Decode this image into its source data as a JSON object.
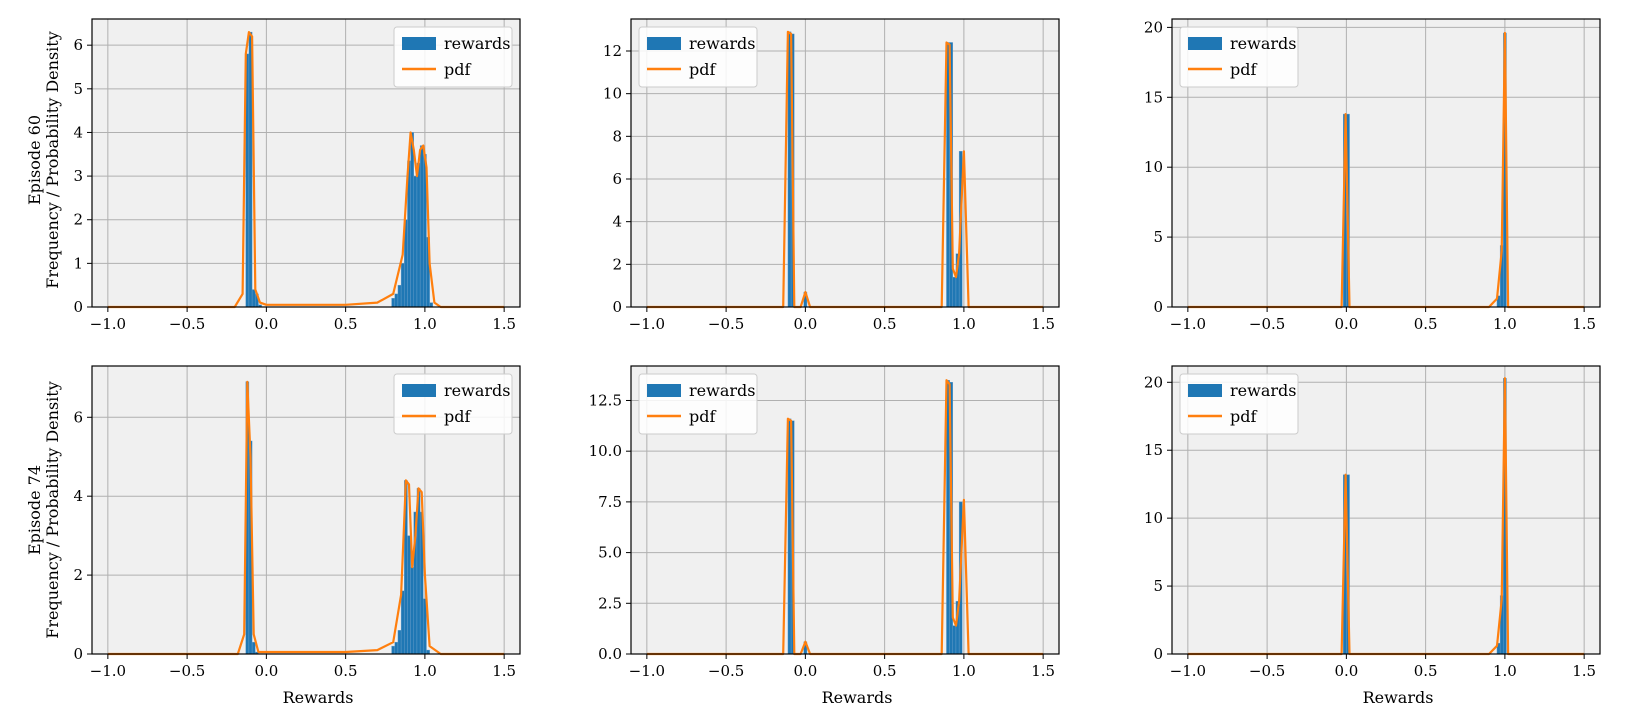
{
  "figure": {
    "row_labels": [
      [
        "Episode 60",
        "Frequency / Probability Density"
      ],
      [
        "Episode 74",
        "Frequency / Probability Density"
      ]
    ],
    "xlabel": "Rewards",
    "legend": {
      "rewards": "rewards",
      "pdf": "pdf"
    },
    "colors": {
      "bar": "#1f77b4",
      "pdf": "#ff7f0e",
      "panel_bg": "#f0f0f0",
      "grid": "#b0b0b0"
    }
  },
  "chart_data": [
    {
      "type": "bar",
      "row": 0,
      "col": 0,
      "xlim": [
        -1.1,
        1.6
      ],
      "ylim": [
        0,
        6.6
      ],
      "xticks": [
        -1.0,
        -0.5,
        0.0,
        0.5,
        1.0,
        1.5
      ],
      "xtick_labels": [
        "−1.0",
        "−0.5",
        "0.0",
        "0.5",
        "1.0",
        "1.5"
      ],
      "yticks": [
        0,
        1,
        2,
        3,
        4,
        5,
        6
      ],
      "ytick_labels": [
        "0",
        "1",
        "2",
        "3",
        "4",
        "5",
        "6"
      ],
      "legend_position": "top-right",
      "bin_width": 0.02,
      "bars": [
        [
          -0.12,
          5.8
        ],
        [
          -0.1,
          6.3
        ],
        [
          -0.08,
          0.4
        ],
        [
          -0.06,
          0.3
        ],
        [
          -0.04,
          0.05
        ],
        [
          0.8,
          0.2
        ],
        [
          0.82,
          0.3
        ],
        [
          0.84,
          0.5
        ],
        [
          0.86,
          1.0
        ],
        [
          0.88,
          2.0
        ],
        [
          0.9,
          3.35
        ],
        [
          0.92,
          4.0
        ],
        [
          0.94,
          3.0
        ],
        [
          0.96,
          3.3
        ],
        [
          0.98,
          3.7
        ],
        [
          1.0,
          3.5
        ],
        [
          1.02,
          1.6
        ],
        [
          1.04,
          0.1
        ]
      ],
      "pdf": [
        [
          -1.0,
          0
        ],
        [
          -0.2,
          0
        ],
        [
          -0.15,
          0.3
        ],
        [
          -0.13,
          5.8
        ],
        [
          -0.11,
          6.3
        ],
        [
          -0.09,
          6.2
        ],
        [
          -0.07,
          0.4
        ],
        [
          -0.04,
          0.1
        ],
        [
          0.0,
          0.05
        ],
        [
          0.5,
          0.05
        ],
        [
          0.7,
          0.1
        ],
        [
          0.8,
          0.3
        ],
        [
          0.86,
          1.2
        ],
        [
          0.89,
          3.0
        ],
        [
          0.91,
          4.0
        ],
        [
          0.93,
          3.6
        ],
        [
          0.95,
          3.0
        ],
        [
          0.97,
          3.6
        ],
        [
          0.99,
          3.7
        ],
        [
          1.01,
          3.2
        ],
        [
          1.03,
          1.0
        ],
        [
          1.06,
          0.1
        ],
        [
          1.1,
          0
        ],
        [
          1.5,
          0
        ]
      ]
    },
    {
      "type": "bar",
      "row": 0,
      "col": 1,
      "xlim": [
        -1.1,
        1.6
      ],
      "ylim": [
        0,
        13.5
      ],
      "xticks": [
        -1.0,
        -0.5,
        0.0,
        0.5,
        1.0,
        1.5
      ],
      "xtick_labels": [
        "−1.0",
        "−0.5",
        "0.0",
        "0.5",
        "1.0",
        "1.5"
      ],
      "yticks": [
        0,
        2,
        4,
        6,
        8,
        10,
        12
      ],
      "ytick_labels": [
        "0",
        "2",
        "4",
        "6",
        "8",
        "10",
        "12"
      ],
      "legend_position": "top-left",
      "bin_width": 0.02,
      "bars": [
        [
          -0.1,
          12.9
        ],
        [
          -0.08,
          12.8
        ],
        [
          0.0,
          0.7
        ],
        [
          0.9,
          12.4
        ],
        [
          0.92,
          12.4
        ],
        [
          0.94,
          1.4
        ],
        [
          0.96,
          2.5
        ],
        [
          0.98,
          7.3
        ]
      ],
      "pdf": [
        [
          -1.0,
          0
        ],
        [
          -0.14,
          0
        ],
        [
          -0.11,
          12.9
        ],
        [
          -0.09,
          12.8
        ],
        [
          -0.07,
          0
        ],
        [
          -0.03,
          0
        ],
        [
          0.0,
          0.7
        ],
        [
          0.03,
          0
        ],
        [
          0.86,
          0
        ],
        [
          0.89,
          12.4
        ],
        [
          0.91,
          12.3
        ],
        [
          0.93,
          1.8
        ],
        [
          0.95,
          1.4
        ],
        [
          0.97,
          2.5
        ],
        [
          1.0,
          7.3
        ],
        [
          1.03,
          0
        ],
        [
          1.5,
          0
        ]
      ]
    },
    {
      "type": "bar",
      "row": 0,
      "col": 2,
      "xlim": [
        -1.1,
        1.6
      ],
      "ylim": [
        0,
        20.6
      ],
      "xticks": [
        -1.0,
        -0.5,
        0.0,
        0.5,
        1.0,
        1.5
      ],
      "xtick_labels": [
        "−1.0",
        "−0.5",
        "0.0",
        "0.5",
        "1.0",
        "1.5"
      ],
      "yticks": [
        0,
        5,
        10,
        15,
        20
      ],
      "ytick_labels": [
        "0",
        "5",
        "10",
        "15",
        "20"
      ],
      "legend_position": "top-left",
      "bin_width": 0.02,
      "bars": [
        [
          -0.01,
          13.8
        ],
        [
          0.01,
          13.8
        ],
        [
          0.96,
          0.8
        ],
        [
          0.98,
          4.4
        ],
        [
          1.0,
          19.6
        ]
      ],
      "pdf": [
        [
          -1.0,
          0
        ],
        [
          -0.03,
          0
        ],
        [
          -0.005,
          13.8
        ],
        [
          0.02,
          0
        ],
        [
          0.9,
          0
        ],
        [
          0.95,
          0.6
        ],
        [
          0.98,
          4.0
        ],
        [
          1.0,
          19.6
        ],
        [
          1.02,
          0
        ],
        [
          1.5,
          0
        ]
      ]
    },
    {
      "type": "bar",
      "row": 1,
      "col": 0,
      "xlim": [
        -1.1,
        1.6
      ],
      "ylim": [
        0,
        7.3
      ],
      "xticks": [
        -1.0,
        -0.5,
        0.0,
        0.5,
        1.0,
        1.5
      ],
      "xtick_labels": [
        "−1.0",
        "−0.5",
        "0.0",
        "0.5",
        "1.0",
        "1.5"
      ],
      "yticks": [
        0,
        2,
        4,
        6
      ],
      "ytick_labels": [
        "0",
        "2",
        "4",
        "6"
      ],
      "legend_position": "top-right",
      "bin_width": 0.02,
      "bars": [
        [
          -0.12,
          6.9
        ],
        [
          -0.1,
          5.4
        ],
        [
          -0.08,
          0.3
        ],
        [
          -0.06,
          0.05
        ],
        [
          0.8,
          0.2
        ],
        [
          0.82,
          0.3
        ],
        [
          0.84,
          0.6
        ],
        [
          0.86,
          1.6
        ],
        [
          0.88,
          4.4
        ],
        [
          0.9,
          3.0
        ],
        [
          0.92,
          2.2
        ],
        [
          0.94,
          3.6
        ],
        [
          0.96,
          4.2
        ],
        [
          0.98,
          3.6
        ],
        [
          1.0,
          1.4
        ],
        [
          1.02,
          0.1
        ]
      ],
      "pdf": [
        [
          -1.0,
          0
        ],
        [
          -0.18,
          0
        ],
        [
          -0.14,
          0.5
        ],
        [
          -0.12,
          6.9
        ],
        [
          -0.1,
          5.0
        ],
        [
          -0.08,
          0.5
        ],
        [
          -0.05,
          0.05
        ],
        [
          0.5,
          0.05
        ],
        [
          0.7,
          0.1
        ],
        [
          0.8,
          0.3
        ],
        [
          0.85,
          1.5
        ],
        [
          0.88,
          4.4
        ],
        [
          0.9,
          4.3
        ],
        [
          0.92,
          2.2
        ],
        [
          0.94,
          3.0
        ],
        [
          0.96,
          4.2
        ],
        [
          0.98,
          4.1
        ],
        [
          1.0,
          2.0
        ],
        [
          1.03,
          0.2
        ],
        [
          1.1,
          0
        ],
        [
          1.5,
          0
        ]
      ]
    },
    {
      "type": "bar",
      "row": 1,
      "col": 1,
      "xlim": [
        -1.1,
        1.6
      ],
      "ylim": [
        0,
        14.2
      ],
      "xticks": [
        -1.0,
        -0.5,
        0.0,
        0.5,
        1.0,
        1.5
      ],
      "xtick_labels": [
        "−1.0",
        "−0.5",
        "0.0",
        "0.5",
        "1.0",
        "1.5"
      ],
      "yticks": [
        0.0,
        2.5,
        5.0,
        7.5,
        10.0,
        12.5
      ],
      "ytick_labels": [
        "0.0",
        "2.5",
        "5.0",
        "7.5",
        "10.0",
        "12.5"
      ],
      "legend_position": "top-left",
      "bin_width": 0.02,
      "bars": [
        [
          -0.1,
          11.6
        ],
        [
          -0.08,
          11.5
        ],
        [
          0.0,
          0.6
        ],
        [
          0.9,
          13.5
        ],
        [
          0.92,
          13.4
        ],
        [
          0.94,
          1.4
        ],
        [
          0.96,
          2.6
        ],
        [
          0.98,
          7.5
        ]
      ],
      "pdf": [
        [
          -1.0,
          0
        ],
        [
          -0.14,
          0
        ],
        [
          -0.11,
          11.6
        ],
        [
          -0.09,
          11.5
        ],
        [
          -0.07,
          0
        ],
        [
          -0.03,
          0
        ],
        [
          0.0,
          0.6
        ],
        [
          0.03,
          0
        ],
        [
          0.86,
          0
        ],
        [
          0.89,
          13.5
        ],
        [
          0.91,
          13.3
        ],
        [
          0.93,
          1.8
        ],
        [
          0.95,
          1.4
        ],
        [
          0.97,
          2.6
        ],
        [
          1.0,
          7.6
        ],
        [
          1.03,
          0
        ],
        [
          1.5,
          0
        ]
      ]
    },
    {
      "type": "bar",
      "row": 1,
      "col": 2,
      "xlim": [
        -1.1,
        1.6
      ],
      "ylim": [
        0,
        21.2
      ],
      "xticks": [
        -1.0,
        -0.5,
        0.0,
        0.5,
        1.0,
        1.5
      ],
      "xtick_labels": [
        "−1.0",
        "−0.5",
        "0.0",
        "0.5",
        "1.0",
        "1.5"
      ],
      "yticks": [
        0,
        5,
        10,
        15,
        20
      ],
      "ytick_labels": [
        "0",
        "5",
        "10",
        "15",
        "20"
      ],
      "legend_position": "top-left",
      "bin_width": 0.02,
      "bars": [
        [
          -0.01,
          13.2
        ],
        [
          0.01,
          13.2
        ],
        [
          0.96,
          0.8
        ],
        [
          0.98,
          4.3
        ],
        [
          1.0,
          20.3
        ]
      ],
      "pdf": [
        [
          -1.0,
          0
        ],
        [
          -0.03,
          0
        ],
        [
          -0.005,
          13.2
        ],
        [
          0.02,
          0
        ],
        [
          0.9,
          0
        ],
        [
          0.95,
          0.6
        ],
        [
          0.98,
          4.0
        ],
        [
          1.0,
          20.3
        ],
        [
          1.02,
          0
        ],
        [
          1.5,
          0
        ]
      ]
    }
  ]
}
